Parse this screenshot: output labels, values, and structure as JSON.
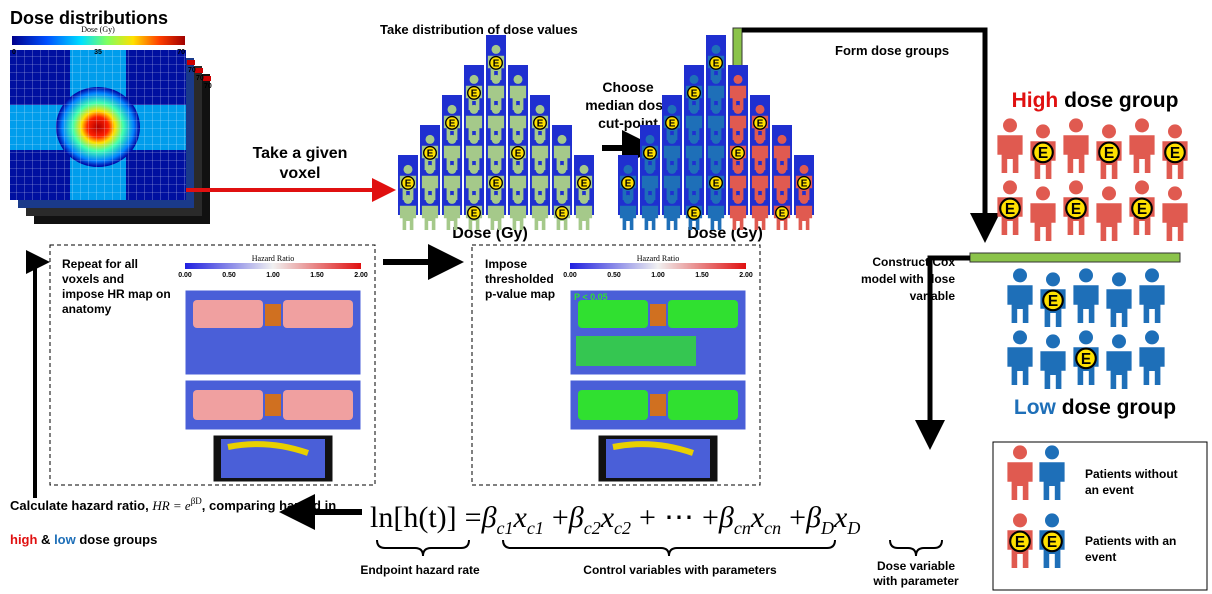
{
  "title": "Dose distributions",
  "dose_colorbar": {
    "label": "Dose (Gy)",
    "ticks": [
      "0",
      "35",
      "70"
    ],
    "layer_label": "70"
  },
  "voxel_step": "Take a given voxel",
  "distribution_step": "Take distribution of dose values",
  "median_step": "Choose median dose cut-point",
  "histogram_axis": "Dose (Gy)",
  "group_step": "Form dose groups",
  "high_group": {
    "accent": "High",
    "rest": " dose group"
  },
  "low_group": {
    "accent": "Low",
    "rest": " dose group"
  },
  "cox_step": "Construct Cox model with dose variable",
  "event_label": "E",
  "hr_map_panel": {
    "text": "Repeat for all voxels and impose HR map on anatomy",
    "colorbar_label": "Hazard Ratio",
    "ticks": [
      "0.00",
      "0.50",
      "1.00",
      "1.50",
      "2.00"
    ]
  },
  "p_map_panel": {
    "text": "Impose thresholded p-value map",
    "colorbar_label": "Hazard Ratio",
    "ticks": [
      "0.00",
      "0.50",
      "1.00",
      "1.50",
      "2.00"
    ],
    "overlay": "P < 0.05"
  },
  "hazard_step": {
    "lead": "Calculate hazard ratio, ",
    "formula": "HR = e",
    "exponent": "βD",
    "mid": ", comparing hazard in ",
    "high": "high",
    "and": " & ",
    "low": "low",
    "tail": " dose groups"
  },
  "equation": [
    [
      "ln[h(t)]"
    ],
    [
      "="
    ],
    [
      "β",
      "c1"
    ],
    [
      "x",
      "c1"
    ],
    [
      "+"
    ],
    [
      "β",
      "c2"
    ],
    [
      "x",
      "c2"
    ],
    [
      "+"
    ],
    [
      "⋯"
    ],
    [
      "+"
    ],
    [
      "β",
      "cn"
    ],
    [
      "x",
      "cn"
    ],
    [
      "+"
    ],
    [
      "β",
      "D"
    ],
    [
      "x",
      "D"
    ]
  ],
  "brace_labels": [
    "Endpoint hazard rate",
    "Control variables with parameters",
    "Dose variable with parameter"
  ],
  "legend": {
    "without_event": "Patients without an event",
    "with_event": "Patients with an event"
  }
}
